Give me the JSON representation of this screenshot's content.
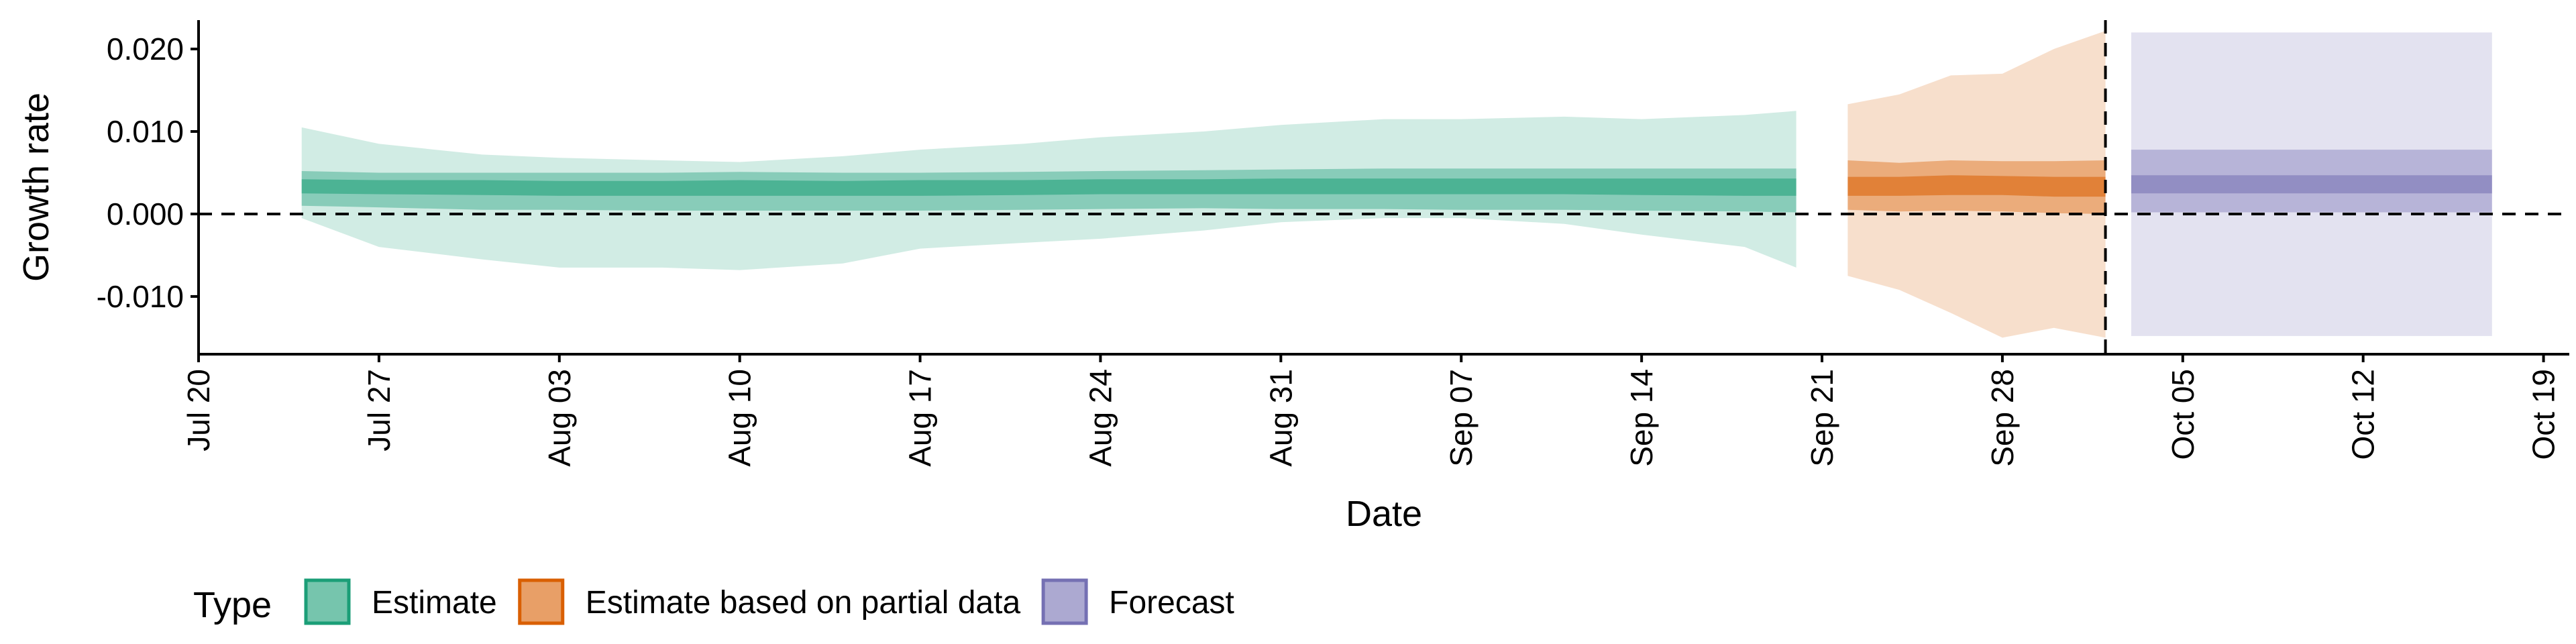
{
  "chart_data": {
    "type": "area",
    "title": "",
    "xlabel": "Date",
    "ylabel": "Growth rate",
    "x_range": [
      "2020-07-20",
      "2020-10-20"
    ],
    "ylim": [
      -0.017,
      0.0235
    ],
    "x_ticks": [
      {
        "date": "2020-07-20",
        "label": "Jul 20"
      },
      {
        "date": "2020-07-27",
        "label": "Jul 27"
      },
      {
        "date": "2020-08-03",
        "label": "Aug 03"
      },
      {
        "date": "2020-08-10",
        "label": "Aug 10"
      },
      {
        "date": "2020-08-17",
        "label": "Aug 17"
      },
      {
        "date": "2020-08-24",
        "label": "Aug 24"
      },
      {
        "date": "2020-08-31",
        "label": "Aug 31"
      },
      {
        "date": "2020-09-07",
        "label": "Sep 07"
      },
      {
        "date": "2020-09-14",
        "label": "Sep 14"
      },
      {
        "date": "2020-09-21",
        "label": "Sep 21"
      },
      {
        "date": "2020-09-28",
        "label": "Sep 28"
      },
      {
        "date": "2020-10-05",
        "label": "Oct 05"
      },
      {
        "date": "2020-10-12",
        "label": "Oct 12"
      },
      {
        "date": "2020-10-19",
        "label": "Oct 19"
      }
    ],
    "y_ticks": [
      {
        "value": -0.01,
        "label": "-0.010"
      },
      {
        "value": 0.0,
        "label": "0.000"
      },
      {
        "value": 0.01,
        "label": "0.010"
      },
      {
        "value": 0.02,
        "label": "0.020"
      }
    ],
    "reference_lines": {
      "horizontal_y": 0.0,
      "vertical_date": "2020-10-02"
    },
    "grid": false,
    "legend": {
      "title": "Type",
      "position": "bottom",
      "items": [
        {
          "label": "Estimate",
          "color": "#1b9e77"
        },
        {
          "label": "Estimate based on partial data",
          "color": "#d95f02"
        },
        {
          "label": "Forecast",
          "color": "#7570b3"
        }
      ]
    },
    "band_opacity": {
      "outer": 0.2,
      "middle": 0.4,
      "inner": 0.55
    },
    "series": [
      {
        "name": "Estimate",
        "color": "#1b9e77",
        "dates": [
          "2020-07-24",
          "2020-07-27",
          "2020-07-31",
          "2020-08-03",
          "2020-08-07",
          "2020-08-10",
          "2020-08-14",
          "2020-08-17",
          "2020-08-21",
          "2020-08-24",
          "2020-08-28",
          "2020-08-31",
          "2020-09-04",
          "2020-09-07",
          "2020-09-11",
          "2020-09-14",
          "2020-09-18",
          "2020-09-20"
        ],
        "outer_upper": [
          0.0105,
          0.0085,
          0.0072,
          0.0068,
          0.0065,
          0.0063,
          0.007,
          0.0078,
          0.0085,
          0.0093,
          0.01,
          0.0108,
          0.0115,
          0.0115,
          0.0118,
          0.0115,
          0.012,
          0.0125
        ],
        "outer_lower": [
          -0.0005,
          -0.004,
          -0.0055,
          -0.0065,
          -0.0065,
          -0.0068,
          -0.006,
          -0.0042,
          -0.0035,
          -0.003,
          -0.002,
          -0.001,
          -0.0005,
          -0.0005,
          -0.0012,
          -0.0025,
          -0.004,
          -0.0065
        ],
        "middle_upper": [
          0.0052,
          0.005,
          0.005,
          0.005,
          0.005,
          0.0051,
          0.005,
          0.005,
          0.0051,
          0.0052,
          0.0053,
          0.0054,
          0.0055,
          0.0055,
          0.0055,
          0.0055,
          0.0055,
          0.0055
        ],
        "middle_lower": [
          0.001,
          0.0008,
          0.0005,
          0.0005,
          0.0004,
          0.0004,
          0.0004,
          0.0004,
          0.0005,
          0.0006,
          0.0007,
          0.0006,
          0.0006,
          0.0005,
          0.0005,
          0.0004,
          0.0003,
          0.0002
        ],
        "inner_upper": [
          0.0042,
          0.0041,
          0.0041,
          0.004,
          0.004,
          0.0041,
          0.004,
          0.0041,
          0.0041,
          0.0042,
          0.0042,
          0.0043,
          0.0043,
          0.0043,
          0.0043,
          0.0043,
          0.0043,
          0.0043
        ],
        "inner_lower": [
          0.0025,
          0.0024,
          0.0023,
          0.0022,
          0.0022,
          0.0022,
          0.0022,
          0.0022,
          0.0023,
          0.0024,
          0.0024,
          0.0024,
          0.0024,
          0.0024,
          0.0024,
          0.0023,
          0.0022,
          0.0022
        ]
      },
      {
        "name": "Estimate based on partial data",
        "color": "#d95f02",
        "dates": [
          "2020-09-22",
          "2020-09-24",
          "2020-09-26",
          "2020-09-28",
          "2020-09-30",
          "2020-10-02"
        ],
        "outer_upper": [
          0.0133,
          0.0145,
          0.0168,
          0.017,
          0.02,
          0.0222
        ],
        "outer_lower": [
          -0.0075,
          -0.0092,
          -0.012,
          -0.015,
          -0.0138,
          -0.015
        ],
        "middle_upper": [
          0.0065,
          0.0062,
          0.0065,
          0.0064,
          0.0064,
          0.0065
        ],
        "middle_lower": [
          0.0005,
          0.0003,
          0.0004,
          0.0003,
          0.0001,
          0.0
        ],
        "inner_upper": [
          0.0045,
          0.0045,
          0.0047,
          0.0046,
          0.0045,
          0.0045
        ],
        "inner_lower": [
          0.0022,
          0.0022,
          0.0023,
          0.0023,
          0.0021,
          0.0021
        ]
      },
      {
        "name": "Forecast",
        "color": "#7570b3",
        "dates": [
          "2020-10-03",
          "2020-10-17"
        ],
        "outer_upper": [
          0.022,
          0.022
        ],
        "outer_lower": [
          -0.0148,
          -0.0148
        ],
        "middle_upper": [
          0.0078,
          0.0078
        ],
        "middle_lower": [
          0.0002,
          0.0002
        ],
        "inner_upper": [
          0.0047,
          0.0047
        ],
        "inner_lower": [
          0.0025,
          0.0025
        ]
      }
    ]
  }
}
